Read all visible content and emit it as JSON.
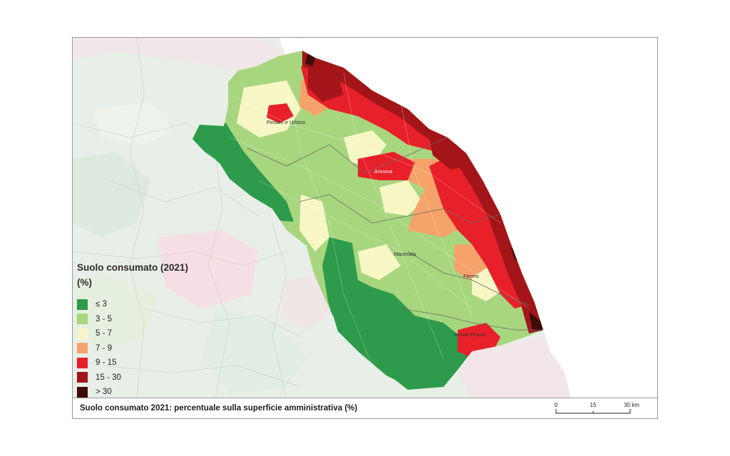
{
  "legend": {
    "title": "Suolo consumato (2021)",
    "unit": "(%)",
    "classes": [
      {
        "label": "≤ 3",
        "color": "#2e9a4c"
      },
      {
        "label": "3 - 5",
        "color": "#a8d67f"
      },
      {
        "label": "5 - 7",
        "color": "#f7f7c6"
      },
      {
        "label": "7 - 9",
        "color": "#f5a36a"
      },
      {
        "label": "9 - 15",
        "color": "#e8202a"
      },
      {
        "label": "15 - 30",
        "color": "#a31519"
      },
      {
        "label": "> 30",
        "color": "#3e0b0b"
      }
    ]
  },
  "cities": {
    "pesaro": "Pesaro e Urbino",
    "ancona": "Ancona",
    "macerata": "Macerata",
    "fermo": "Fermo",
    "ascoli": "Ascoli Piceno"
  },
  "caption": "Suolo consumato 2021: percentuale sulla superficie amministrativa (%)",
  "scale": {
    "t0": "0",
    "t1": "15",
    "t2": "30 km"
  },
  "colors": {
    "sea": "#ffffff",
    "outside": "#e6efe8",
    "border": "#b9b9b9"
  }
}
